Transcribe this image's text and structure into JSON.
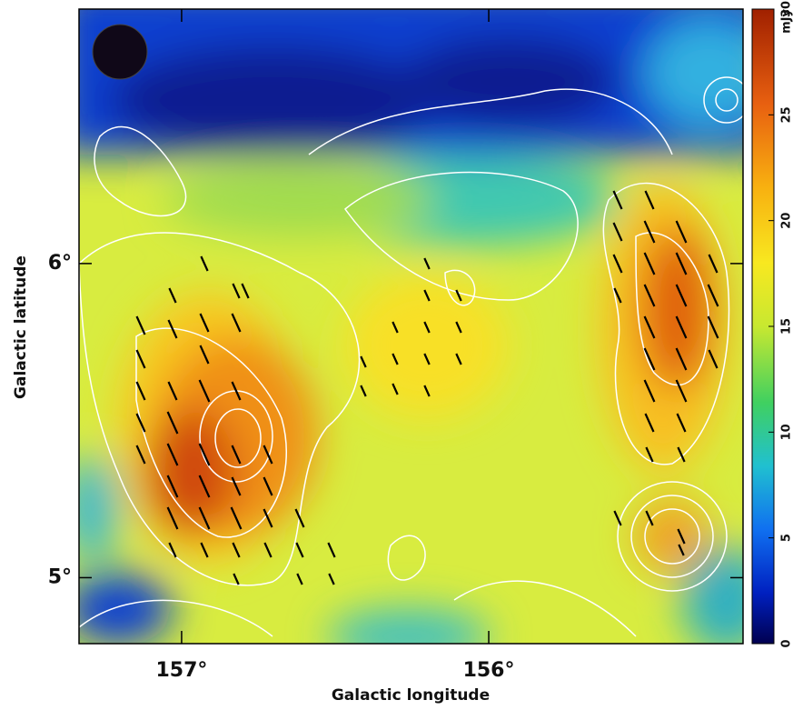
{
  "chart_data": {
    "type": "image",
    "xlabel": "Galactic longitude",
    "ylabel": "Galactic latitude",
    "xlim": [
      157.334,
      155.172
    ],
    "ylim": [
      4.79,
      6.81
    ],
    "xticks": [
      {
        "value": 157,
        "label": "157°"
      },
      {
        "value": 156,
        "label": "156°"
      }
    ],
    "yticks": [
      {
        "value": 5,
        "label": "5°"
      },
      {
        "value": 6,
        "label": "6°"
      }
    ],
    "colorbar": {
      "label": "mJy",
      "lim": [
        0,
        30
      ],
      "ticks": [
        0,
        5,
        10,
        15,
        20,
        25,
        30
      ]
    }
  }
}
